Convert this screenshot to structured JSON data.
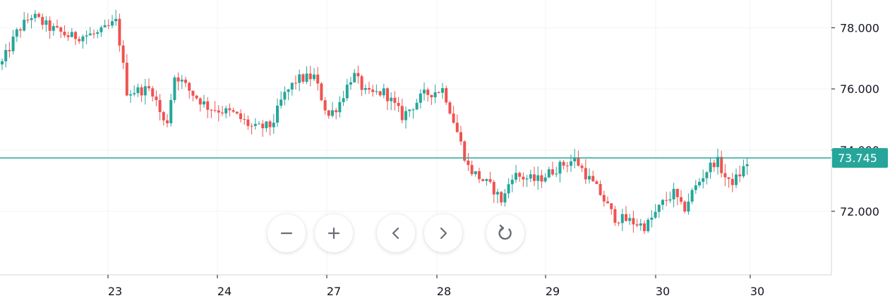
{
  "chart_data": {
    "type": "candlestick",
    "y_ticks": [
      "78.000",
      "76.000",
      "74.000",
      "72.000"
    ],
    "x_ticks": [
      "23",
      "24",
      "27",
      "28",
      "29",
      "30",
      "30"
    ],
    "ylim": [
      69.8,
      78.7
    ],
    "last_price": 73.745,
    "last_price_label": "73.745",
    "colors": {
      "up": "#26a69a",
      "down": "#ef5350",
      "grid": "#f0f3fa",
      "axis": "#131722",
      "price_line": "#26a69a"
    },
    "grid": true,
    "series_close_approx": [
      {
        "x": "23",
        "value": 77.9
      },
      {
        "x": "23",
        "value": 75.8
      },
      {
        "x": "24",
        "value": 74.9
      },
      {
        "x": "24",
        "value": 75.1
      },
      {
        "x": "27",
        "value": 76.2
      },
      {
        "x": "27",
        "value": 75.4
      },
      {
        "x": "28",
        "value": 75.8
      },
      {
        "x": "28",
        "value": 73.3
      },
      {
        "x": "29",
        "value": 72.3
      },
      {
        "x": "29",
        "value": 73.6
      },
      {
        "x": "30",
        "value": 71.7
      },
      {
        "x": "30",
        "value": 73.8
      }
    ]
  },
  "controls": [
    {
      "name": "zoom-out-button",
      "icon": "minus-icon"
    },
    {
      "name": "zoom-in-button",
      "icon": "plus-icon"
    },
    {
      "name": "scroll-left-button",
      "icon": "chevron-left-icon"
    },
    {
      "name": "scroll-right-button",
      "icon": "chevron-right-icon"
    },
    {
      "name": "reset-chart-button",
      "icon": "reset-icon"
    }
  ]
}
